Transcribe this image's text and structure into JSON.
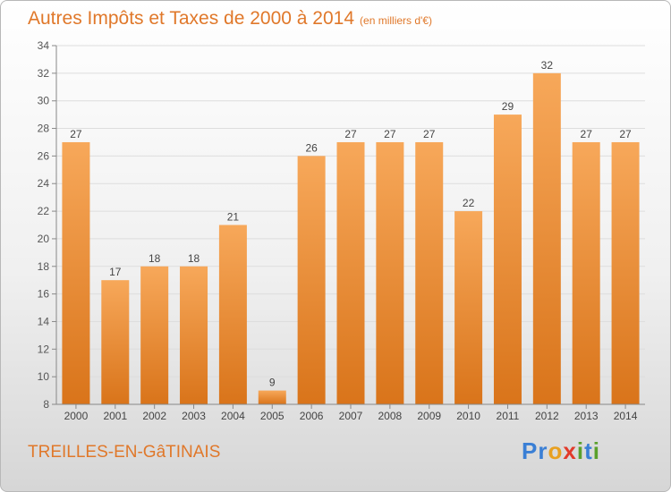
{
  "header": {
    "title": "Autres Impôts et Taxes de 2000 à 2014",
    "unit": "(en milliers d'€)"
  },
  "footer": {
    "commune": "TREILLES-EN-GâTINAIS",
    "logo_letters": [
      "P",
      "r",
      "o",
      "x",
      "i",
      "t",
      "i"
    ],
    "logo_colors": [
      "#3a7fd5",
      "#3a7fd5",
      "#e8a020",
      "#e23a2a",
      "#5aa02c",
      "#3a7fd5",
      "#5aa02c"
    ]
  },
  "chart_data": {
    "type": "bar",
    "title": "Autres Impôts et Taxes de 2000 à 2014",
    "subtitle": "(en milliers d'€)",
    "xlabel": "",
    "ylabel": "",
    "categories": [
      "2000",
      "2001",
      "2002",
      "2003",
      "2004",
      "2005",
      "2006",
      "2007",
      "2008",
      "2009",
      "2010",
      "2011",
      "2012",
      "2013",
      "2014"
    ],
    "values": [
      27,
      17,
      18,
      18,
      21,
      9,
      26,
      27,
      27,
      27,
      22,
      29,
      32,
      27,
      27
    ],
    "data_labels": [
      "27",
      "17",
      "18",
      "18",
      "21",
      "9",
      "26",
      "27",
      "27",
      "27",
      "22",
      "29",
      "32",
      "27",
      "27"
    ],
    "ylim": [
      8,
      34
    ],
    "yticks": [
      8,
      10,
      12,
      14,
      16,
      18,
      20,
      22,
      24,
      26,
      28,
      30,
      32,
      34
    ],
    "grid": true,
    "bar_color_top": "#f7a85a",
    "bar_color_bottom": "#d9741a",
    "axis_color": "#888888",
    "grid_color": "#dddddd"
  }
}
